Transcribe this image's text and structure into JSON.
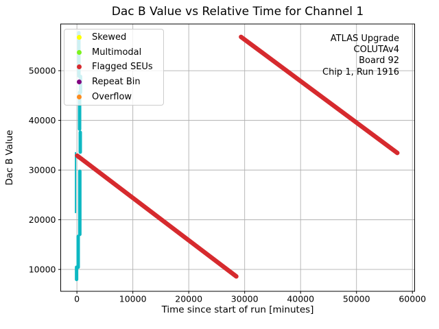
{
  "chart_data": {
    "type": "scatter",
    "title": "Dac B Value vs Relative Time for Channel 1",
    "xlabel": "Time since start of run [minutes]",
    "ylabel": "Dac B Value",
    "xlim": [
      -2900,
      60400
    ],
    "ylim": [
      5600,
      59400
    ],
    "xticks": [
      0,
      10000,
      20000,
      30000,
      40000,
      50000,
      60000
    ],
    "yticks": [
      10000,
      20000,
      30000,
      40000,
      50000
    ],
    "grid": true,
    "grid_color": "#b0b0b0",
    "frame_color": "#000000",
    "legend": {
      "position": "upper left",
      "entries": [
        {
          "label": "Skewed",
          "color": "#ffff00",
          "marker": "dot"
        },
        {
          "label": "Multimodal",
          "color": "#7df31e",
          "marker": "dot"
        },
        {
          "label": "Flagged SEUs",
          "color": "#d62a2e",
          "marker": "dot"
        },
        {
          "label": "Repeat Bin",
          "color": "#800080",
          "marker": "dot"
        },
        {
          "label": "Overflow",
          "color": "#fd8c1e",
          "marker": "dot"
        }
      ]
    },
    "annotation": {
      "align": "right",
      "lines": [
        "ATLAS Upgrade",
        "COLUTAv4",
        "Board 92",
        "Chip 1, Run 1916"
      ]
    },
    "series": [
      {
        "name": "dac-scan-initial",
        "color": "#0db8c2",
        "stroke_px": 5,
        "note": "dense vertical scatter near t=0 covering full DAC range, x-jittered",
        "segments": [
          [
            350,
            57650,
            350,
            48900
          ],
          [
            650,
            48850,
            650,
            45650
          ],
          [
            480,
            45650,
            480,
            38250
          ],
          [
            600,
            37600,
            600,
            33600
          ],
          [
            -250,
            33500,
            -250,
            21450,
            2
          ],
          [
            520,
            29750,
            520,
            17050
          ],
          [
            230,
            16650,
            230,
            10450
          ],
          [
            -60,
            10450,
            -60,
            7980
          ]
        ]
      },
      {
        "name": "flagged-seus-ramp",
        "color": "#d62a2e",
        "stroke_px": 6.5,
        "note": "descending sawtooth ramp of flagged points",
        "segments": [
          [
            50,
            32900,
            28500,
            8600
          ],
          [
            29350,
            56800,
            57300,
            33450
          ]
        ]
      }
    ]
  }
}
